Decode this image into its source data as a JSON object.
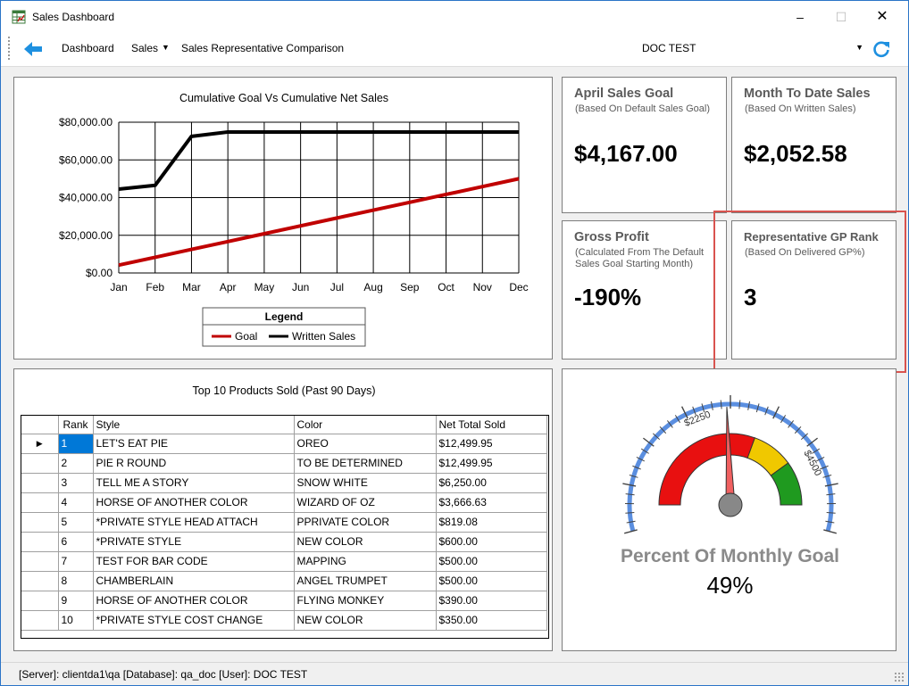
{
  "window": {
    "title": "Sales Dashboard"
  },
  "toolbar": {
    "dashboard": "Dashboard",
    "sales": "Sales",
    "comparison": "Sales Representative Comparison",
    "combo_value": "DOC TEST"
  },
  "cards": {
    "sales_goal": {
      "title": "April Sales Goal",
      "sub": "(Based On Default Sales Goal)",
      "value": "$4,167.00"
    },
    "mtd_sales": {
      "title": "Month To Date Sales",
      "sub": "(Based On Written Sales)",
      "value": "$2,052.58"
    },
    "gross_profit": {
      "title": "Gross Profit",
      "sub": "(Calculated From The Default Sales Goal Starting Month)",
      "value": "-190%"
    },
    "gp_rank": {
      "title": "Representative GP Rank",
      "sub": "(Based On Delivered GP%)",
      "value": "3"
    }
  },
  "chart_data": {
    "type": "line",
    "title": "Cumulative Goal Vs Cumulative Net Sales",
    "categories": [
      "Jan",
      "Feb",
      "Mar",
      "Apr",
      "May",
      "Jun",
      "Jul",
      "Aug",
      "Sep",
      "Oct",
      "Nov",
      "Dec"
    ],
    "y_ticks": [
      "$0.00",
      "$20,000.00",
      "$40,000.00",
      "$60,000.00",
      "$80,000.00"
    ],
    "ylim": [
      0,
      80000
    ],
    "grid": true,
    "legend": {
      "title": "Legend",
      "placement": "bottom-center"
    },
    "series": [
      {
        "name": "Goal",
        "color": "#c00000",
        "values": [
          4167,
          8333,
          12500,
          16667,
          20833,
          25000,
          29167,
          33333,
          37500,
          41667,
          45833,
          50000
        ]
      },
      {
        "name": "Written Sales",
        "color": "#000000",
        "values": [
          44500,
          46500,
          72500,
          74800,
          74800,
          74800,
          74800,
          74800,
          74800,
          74800,
          74800,
          74800
        ]
      }
    ]
  },
  "products": {
    "title": "Top 10 Products Sold (Past 90 Days)",
    "columns": [
      "Rank",
      "Style",
      "Color",
      "Net Total Sold"
    ],
    "rows": [
      [
        "1",
        "LET'S EAT PIE",
        "OREO",
        "$12,499.95"
      ],
      [
        "2",
        "PIE R ROUND",
        "TO BE DETERMINED",
        "$12,499.95"
      ],
      [
        "3",
        "TELL ME A STORY",
        "SNOW WHITE",
        "$6,250.00"
      ],
      [
        "4",
        "HORSE OF ANOTHER COLOR",
        "WIZARD OF OZ",
        "$3,666.63"
      ],
      [
        "5",
        "*PRIVATE STYLE  HEAD ATTACH",
        "PPRIVATE COLOR",
        "$819.08"
      ],
      [
        "6",
        "*PRIVATE STYLE",
        "NEW COLOR",
        "$600.00"
      ],
      [
        "7",
        "TEST FOR BAR CODE",
        "MAPPING",
        "$500.00"
      ],
      [
        "8",
        "CHAMBERLAIN",
        "ANGEL TRUMPET",
        "$500.00"
      ],
      [
        "9",
        "HORSE OF ANOTHER COLOR",
        "FLYING MONKEY",
        "$390.00"
      ],
      [
        "10",
        "*PRIVATE STYLE COST CHANGE",
        "NEW COLOR",
        "$350.00"
      ]
    ]
  },
  "gauge": {
    "label": "Percent Of Monthly Goal",
    "value_text": "49%",
    "percent": 49,
    "scale_labels": [
      "$2250",
      "$4500"
    ],
    "colors": {
      "red": "#e81010",
      "yellow": "#f0c800",
      "green": "#1f9a1f",
      "scale": "#5b8fe0",
      "needle": "#f06060"
    }
  },
  "status": {
    "text": "[Server]: clientda1\\qa  [Database]: qa_doc  [User]: DOC TEST"
  }
}
